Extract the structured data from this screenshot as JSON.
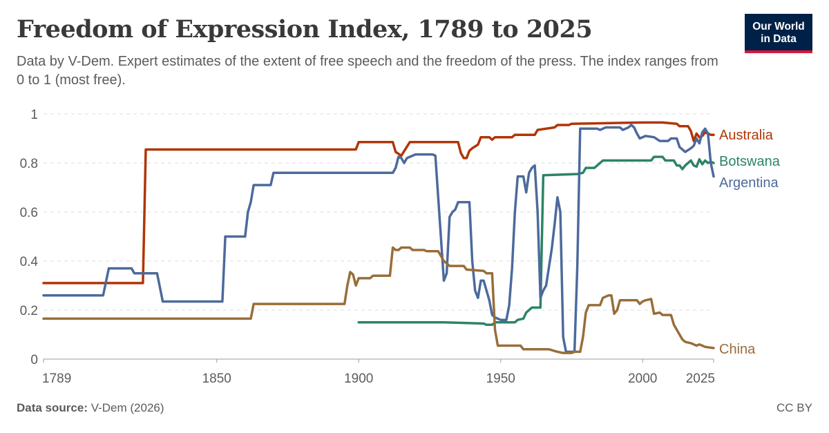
{
  "header": {
    "title": "Freedom of Expression Index, 1789 to 2025",
    "subtitle": "Data by V-Dem. Expert estimates of the extent of free speech and the freedom of the press. The index ranges from 0 to 1 (most free)."
  },
  "logo": {
    "line1": "Our World",
    "line2": "in Data",
    "bg_color": "#002147",
    "accent_color": "#dc143c"
  },
  "footer": {
    "source_label": "Data source:",
    "source_value": "V-Dem (2026)",
    "license": "CC BY"
  },
  "chart_data": {
    "type": "line",
    "title": "Freedom of Expression Index, 1789 to 2025",
    "xlabel": "",
    "ylabel": "",
    "xlim": [
      1789,
      2025
    ],
    "ylim": [
      0,
      1
    ],
    "x_ticks": [
      1789,
      1850,
      1900,
      1950,
      2000,
      2025
    ],
    "y_ticks": [
      0,
      0.2,
      0.4,
      0.6,
      0.8,
      1
    ],
    "y_tick_labels": [
      "0",
      "0.2",
      "0.4",
      "0.6",
      "0.8",
      "1"
    ],
    "grid": "horizontal dashed",
    "legend": "inline labels at right end of lines",
    "series": [
      {
        "name": "Australia",
        "color": "#b13507",
        "points": [
          [
            1789,
            0.31
          ],
          [
            1824,
            0.31
          ],
          [
            1825,
            0.855
          ],
          [
            1899,
            0.855
          ],
          [
            1900,
            0.885
          ],
          [
            1912,
            0.885
          ],
          [
            1913,
            0.845
          ],
          [
            1915,
            0.83
          ],
          [
            1918,
            0.885
          ],
          [
            1930,
            0.885
          ],
          [
            1931,
            0.885
          ],
          [
            1935,
            0.885
          ],
          [
            1936,
            0.84
          ],
          [
            1937,
            0.82
          ],
          [
            1938,
            0.82
          ],
          [
            1939,
            0.85
          ],
          [
            1940,
            0.86
          ],
          [
            1942,
            0.875
          ],
          [
            1943,
            0.905
          ],
          [
            1946,
            0.905
          ],
          [
            1947,
            0.895
          ],
          [
            1948,
            0.905
          ],
          [
            1954,
            0.905
          ],
          [
            1955,
            0.915
          ],
          [
            1962,
            0.915
          ],
          [
            1963,
            0.935
          ],
          [
            1969,
            0.945
          ],
          [
            1970,
            0.955
          ],
          [
            1974,
            0.955
          ],
          [
            1975,
            0.96
          ],
          [
            2000,
            0.965
          ],
          [
            2007,
            0.965
          ],
          [
            2012,
            0.96
          ],
          [
            2013,
            0.95
          ],
          [
            2016,
            0.95
          ],
          [
            2017,
            0.93
          ],
          [
            2018,
            0.89
          ],
          [
            2019,
            0.92
          ],
          [
            2020,
            0.905
          ],
          [
            2021,
            0.91
          ],
          [
            2022,
            0.925
          ],
          [
            2023,
            0.92
          ],
          [
            2024,
            0.915
          ],
          [
            2025,
            0.915
          ]
        ]
      },
      {
        "name": "Botswana",
        "color": "#2c8465",
        "points": [
          [
            1900,
            0.15
          ],
          [
            1914,
            0.15
          ],
          [
            1920,
            0.15
          ],
          [
            1930,
            0.15
          ],
          [
            1936,
            0.148
          ],
          [
            1944,
            0.145
          ],
          [
            1945,
            0.14
          ],
          [
            1947,
            0.14
          ],
          [
            1948,
            0.15
          ],
          [
            1955,
            0.15
          ],
          [
            1956,
            0.16
          ],
          [
            1958,
            0.165
          ],
          [
            1959,
            0.19
          ],
          [
            1961,
            0.21
          ],
          [
            1964,
            0.21
          ],
          [
            1965,
            0.75
          ],
          [
            1977,
            0.755
          ],
          [
            1979,
            0.76
          ],
          [
            1980,
            0.78
          ],
          [
            1983,
            0.78
          ],
          [
            1984,
            0.79
          ],
          [
            1986,
            0.81
          ],
          [
            2003,
            0.81
          ],
          [
            2004,
            0.825
          ],
          [
            2007,
            0.825
          ],
          [
            2008,
            0.81
          ],
          [
            2011,
            0.81
          ],
          [
            2012,
            0.79
          ],
          [
            2013,
            0.79
          ],
          [
            2014,
            0.775
          ],
          [
            2015,
            0.79
          ],
          [
            2016,
            0.8
          ],
          [
            2017,
            0.81
          ],
          [
            2018,
            0.79
          ],
          [
            2019,
            0.785
          ],
          [
            2020,
            0.815
          ],
          [
            2021,
            0.795
          ],
          [
            2022,
            0.81
          ],
          [
            2023,
            0.8
          ],
          [
            2024,
            0.805
          ],
          [
            2025,
            0.8
          ]
        ]
      },
      {
        "name": "Argentina",
        "color": "#4c6a9c",
        "points": [
          [
            1789,
            0.26
          ],
          [
            1810,
            0.26
          ],
          [
            1812,
            0.37
          ],
          [
            1820,
            0.37
          ],
          [
            1821,
            0.35
          ],
          [
            1829,
            0.35
          ],
          [
            1831,
            0.235
          ],
          [
            1852,
            0.235
          ],
          [
            1853,
            0.5
          ],
          [
            1860,
            0.5
          ],
          [
            1861,
            0.6
          ],
          [
            1862,
            0.64
          ],
          [
            1863,
            0.71
          ],
          [
            1869,
            0.71
          ],
          [
            1870,
            0.76
          ],
          [
            1912,
            0.76
          ],
          [
            1913,
            0.78
          ],
          [
            1914,
            0.825
          ],
          [
            1915,
            0.82
          ],
          [
            1916,
            0.8
          ],
          [
            1917,
            0.82
          ],
          [
            1918,
            0.825
          ],
          [
            1920,
            0.835
          ],
          [
            1926,
            0.835
          ],
          [
            1927,
            0.83
          ],
          [
            1930,
            0.32
          ],
          [
            1931,
            0.35
          ],
          [
            1932,
            0.58
          ],
          [
            1933,
            0.6
          ],
          [
            1934,
            0.61
          ],
          [
            1935,
            0.64
          ],
          [
            1939,
            0.64
          ],
          [
            1940,
            0.4
          ],
          [
            1941,
            0.28
          ],
          [
            1942,
            0.25
          ],
          [
            1943,
            0.32
          ],
          [
            1944,
            0.32
          ],
          [
            1946,
            0.24
          ],
          [
            1947,
            0.18
          ],
          [
            1948,
            0.17
          ],
          [
            1950,
            0.16
          ],
          [
            1952,
            0.16
          ],
          [
            1953,
            0.22
          ],
          [
            1954,
            0.37
          ],
          [
            1955,
            0.6
          ],
          [
            1956,
            0.745
          ],
          [
            1958,
            0.745
          ],
          [
            1959,
            0.68
          ],
          [
            1960,
            0.76
          ],
          [
            1961,
            0.78
          ],
          [
            1962,
            0.79
          ],
          [
            1963,
            0.6
          ],
          [
            1964,
            0.25
          ],
          [
            1965,
            0.28
          ],
          [
            1966,
            0.3
          ],
          [
            1968,
            0.45
          ],
          [
            1969,
            0.55
          ],
          [
            1970,
            0.66
          ],
          [
            1971,
            0.6
          ],
          [
            1972,
            0.09
          ],
          [
            1973,
            0.03
          ],
          [
            1975,
            0.03
          ],
          [
            1976,
            0.03
          ],
          [
            1977,
            0.38
          ],
          [
            1978,
            0.94
          ],
          [
            1984,
            0.94
          ],
          [
            1985,
            0.935
          ],
          [
            1987,
            0.945
          ],
          [
            1992,
            0.945
          ],
          [
            1993,
            0.935
          ],
          [
            1995,
            0.945
          ],
          [
            1996,
            0.955
          ],
          [
            1997,
            0.945
          ],
          [
            1998,
            0.92
          ],
          [
            1999,
            0.9
          ],
          [
            2001,
            0.91
          ],
          [
            2004,
            0.905
          ],
          [
            2006,
            0.89
          ],
          [
            2009,
            0.89
          ],
          [
            2010,
            0.9
          ],
          [
            2012,
            0.9
          ],
          [
            2013,
            0.865
          ],
          [
            2015,
            0.845
          ],
          [
            2017,
            0.86
          ],
          [
            2018,
            0.87
          ],
          [
            2019,
            0.9
          ],
          [
            2020,
            0.88
          ],
          [
            2021,
            0.925
          ],
          [
            2022,
            0.94
          ],
          [
            2023,
            0.92
          ],
          [
            2024,
            0.8
          ],
          [
            2025,
            0.745
          ]
        ]
      },
      {
        "name": "China",
        "color": "#996d39",
        "points": [
          [
            1789,
            0.165
          ],
          [
            1862,
            0.165
          ],
          [
            1863,
            0.225
          ],
          [
            1895,
            0.225
          ],
          [
            1896,
            0.3
          ],
          [
            1897,
            0.355
          ],
          [
            1898,
            0.345
          ],
          [
            1899,
            0.3
          ],
          [
            1900,
            0.33
          ],
          [
            1901,
            0.33
          ],
          [
            1904,
            0.33
          ],
          [
            1905,
            0.34
          ],
          [
            1911,
            0.34
          ],
          [
            1912,
            0.455
          ],
          [
            1913,
            0.445
          ],
          [
            1914,
            0.445
          ],
          [
            1915,
            0.455
          ],
          [
            1918,
            0.455
          ],
          [
            1919,
            0.445
          ],
          [
            1923,
            0.445
          ],
          [
            1924,
            0.44
          ],
          [
            1928,
            0.44
          ],
          [
            1929,
            0.42
          ],
          [
            1930,
            0.4
          ],
          [
            1932,
            0.38
          ],
          [
            1937,
            0.38
          ],
          [
            1938,
            0.365
          ],
          [
            1944,
            0.36
          ],
          [
            1945,
            0.35
          ],
          [
            1947,
            0.35
          ],
          [
            1948,
            0.12
          ],
          [
            1949,
            0.055
          ],
          [
            1957,
            0.055
          ],
          [
            1958,
            0.04
          ],
          [
            1967,
            0.04
          ],
          [
            1970,
            0.03
          ],
          [
            1972,
            0.025
          ],
          [
            1975,
            0.025
          ],
          [
            1976,
            0.03
          ],
          [
            1978,
            0.03
          ],
          [
            1979,
            0.09
          ],
          [
            1980,
            0.19
          ],
          [
            1981,
            0.22
          ],
          [
            1985,
            0.22
          ],
          [
            1986,
            0.25
          ],
          [
            1988,
            0.26
          ],
          [
            1989,
            0.26
          ],
          [
            1990,
            0.185
          ],
          [
            1991,
            0.2
          ],
          [
            1992,
            0.24
          ],
          [
            1998,
            0.24
          ],
          [
            1999,
            0.225
          ],
          [
            2000,
            0.235
          ],
          [
            2001,
            0.24
          ],
          [
            2003,
            0.245
          ],
          [
            2004,
            0.185
          ],
          [
            2006,
            0.19
          ],
          [
            2007,
            0.18
          ],
          [
            2008,
            0.18
          ],
          [
            2010,
            0.18
          ],
          [
            2011,
            0.14
          ],
          [
            2012,
            0.12
          ],
          [
            2013,
            0.1
          ],
          [
            2014,
            0.08
          ],
          [
            2015,
            0.07
          ],
          [
            2017,
            0.065
          ],
          [
            2018,
            0.06
          ],
          [
            2019,
            0.055
          ],
          [
            2020,
            0.06
          ],
          [
            2021,
            0.055
          ],
          [
            2022,
            0.05
          ],
          [
            2025,
            0.045
          ]
        ]
      }
    ]
  }
}
